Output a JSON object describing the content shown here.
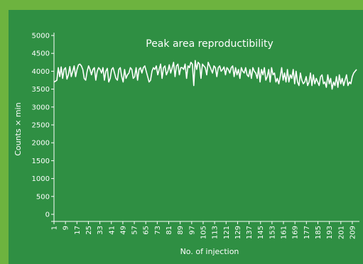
{
  "chart_data": {
    "type": "line",
    "title": "Peak area reproductibility",
    "xlabel": "No. of injection",
    "ylabel": "Counts × min",
    "ylim": [
      0,
      5000
    ],
    "yticks": [
      0,
      500,
      1000,
      1500,
      2000,
      2500,
      3000,
      3500,
      4000,
      4500,
      5000
    ],
    "xlim": [
      1,
      212
    ],
    "xticks": [
      1,
      9,
      17,
      25,
      33,
      41,
      49,
      57,
      65,
      73,
      81,
      89,
      97,
      105,
      113,
      121,
      129,
      137,
      145,
      153,
      161,
      169,
      177,
      185,
      193,
      201,
      209
    ],
    "grid": false,
    "legend": "none",
    "colors": {
      "line": "#ffffff",
      "background": "#2f8f43",
      "frame": "#6db33f"
    },
    "series": [
      {
        "values": [
          3700,
          3720,
          3750,
          4100,
          3850,
          4120,
          3800,
          4050,
          4100,
          3780,
          3900,
          4130,
          3850,
          4000,
          4150,
          3850,
          4050,
          4180,
          4200,
          4150,
          4050,
          3800,
          3750,
          4000,
          4150,
          4050,
          3900,
          4050,
          4100,
          3750,
          4000,
          4100,
          4050,
          3950,
          4100,
          3750,
          4000,
          4080,
          3700,
          3800,
          4050,
          4100,
          3950,
          3800,
          3750,
          4050,
          4100,
          3850,
          3700,
          4050,
          3800,
          3900,
          3950,
          4100,
          4050,
          3800,
          3850,
          4100,
          3750,
          4050,
          4100,
          3950,
          4100,
          4150,
          4000,
          3850,
          3700,
          3750,
          4000,
          4100,
          4050,
          4150,
          3900,
          4050,
          4200,
          3800,
          4100,
          4150,
          3900,
          4000,
          4180,
          3950,
          4100,
          4250,
          3850,
          4150,
          4200,
          3900,
          4100,
          4100,
          4050,
          4200,
          3800,
          4150,
          4100,
          4250,
          4200,
          3600,
          4300,
          4050,
          4250,
          4200,
          3800,
          4200,
          4150,
          4100,
          3900,
          4250,
          4150,
          4050,
          3950,
          4150,
          4100,
          3850,
          4100,
          4150,
          4000,
          4050,
          4120,
          3900,
          4100,
          4050,
          3950,
          4100,
          4150,
          3850,
          4100,
          3900,
          4050,
          3800,
          4100,
          4000,
          3950,
          4100,
          3900,
          3850,
          4050,
          3800,
          4100,
          4000,
          3950,
          3800,
          4100,
          3700,
          4050,
          3900,
          4100,
          3750,
          3850,
          4050,
          3700,
          4100,
          3900,
          3950,
          3700,
          3800,
          3650,
          3850,
          4100,
          3750,
          3950,
          3700,
          4050,
          3700,
          3900,
          3800,
          4050,
          3650,
          4000,
          3700,
          3600,
          3950,
          3750,
          3650,
          3700,
          3850,
          3600,
          3700,
          3950,
          3600,
          3900,
          3650,
          3800,
          3700,
          3600,
          3850,
          3900,
          3650,
          3700,
          3550,
          3900,
          3650,
          3800,
          3500,
          3700,
          3600,
          3850,
          3550,
          3900,
          3650,
          3800,
          3600,
          3750,
          3900,
          3600,
          3700,
          3650,
          3850,
          3950,
          4000,
          4050
        ]
      }
    ]
  }
}
